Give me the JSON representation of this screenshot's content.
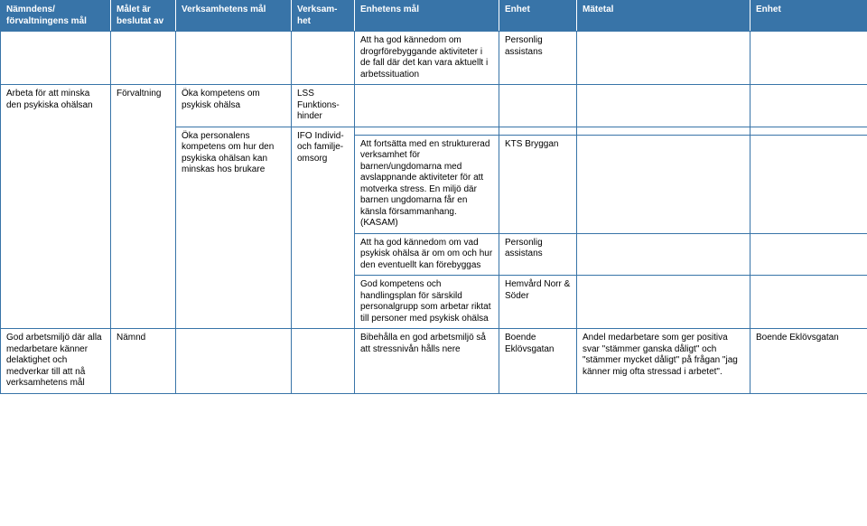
{
  "columns": {
    "c1": "Nämndens/ förvaltningens mål",
    "c2": "Målet är beslutat av",
    "c3": "Verksamhetens mål",
    "c4": "Verksam-het",
    "c5": "Enhetens mål",
    "c6": "Enhet",
    "c7": "Mätetal",
    "c8": "Enhet"
  },
  "r1": {
    "c5": "Att ha god kännedom om drogrförebyggande aktiviteter i de fall där det kan vara aktuellt i arbetssituation",
    "c6": "Personlig assistans"
  },
  "r2": {
    "c1": "Arbeta för att minska den psykiska ohälsan",
    "c2": "Förvaltning",
    "c3": "Öka kompetens om psykisk ohälsa",
    "c4": "LSS Funktions-hinder"
  },
  "r3": {
    "c3": "Öka personalens kompetens om hur den psykiska ohälsan kan minskas hos brukare",
    "c4": "IFO Individ- och familje-omsorg"
  },
  "r4": {
    "c5": "Att fortsätta med en strukturerad verksamhet för barnen/ungdomarna med avslappnande aktiviteter för att motverka stress. En miljö där barnen ungdomarna får en känsla försammanhang. (KASAM)",
    "c6": "KTS Bryggan"
  },
  "r5": {
    "c5": "Att ha god kännedom om vad psykisk ohälsa är om om och hur den eventuellt kan förebyggas",
    "c6": "Personlig assistans"
  },
  "r6": {
    "c5": "God kompetens och handlingsplan för särskild personalgrupp som arbetar riktat till personer med psykisk ohälsa",
    "c6": "Hemvård Norr & Söder"
  },
  "r7": {
    "c1": "God arbetsmiljö där alla medarbetare känner delaktighet och medverkar till att nå verksamhetens mål",
    "c2": "Nämnd",
    "c5": "Bibehålla en god arbetsmiljö så att stressnivån hålls nere",
    "c6": "Boende Eklövsgatan",
    "c7": "Andel medarbetare som ger positiva svar \"stämmer ganska dåligt\" och \"stämmer mycket dåligt\" på frågan \"jag känner mig ofta stressad i arbetet\".",
    "c8": "Boende Eklövsgatan"
  }
}
